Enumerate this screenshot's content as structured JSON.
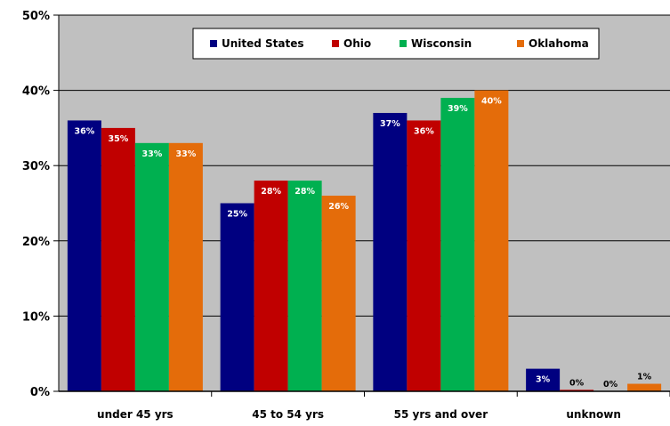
{
  "chart_data": {
    "type": "bar",
    "categories": [
      "under 45 yrs",
      "45 to 54 yrs",
      "55  yrs and over",
      "unknown"
    ],
    "series": [
      {
        "name": "United States",
        "values": [
          36,
          25,
          37,
          3
        ],
        "labels": [
          "36%",
          "25%",
          "37%",
          "3%"
        ],
        "color": "#000080"
      },
      {
        "name": "Ohio",
        "values": [
          35,
          28,
          36,
          0.2
        ],
        "labels": [
          "35%",
          "28%",
          "36%",
          "0%"
        ],
        "color": "#C00000"
      },
      {
        "name": "Wisconsin",
        "values": [
          33,
          28,
          39,
          0
        ],
        "labels": [
          "33%",
          "28%",
          "39%",
          "0%"
        ],
        "color": "#00B050"
      },
      {
        "name": "Oklahoma",
        "values": [
          33,
          26,
          40,
          1
        ],
        "labels": [
          "33%",
          "26%",
          "40%",
          "1%"
        ],
        "color": "#E46C0A"
      }
    ],
    "ylim": [
      0,
      50
    ],
    "yticks": [
      0,
      10,
      20,
      30,
      40,
      50
    ],
    "ytick_labels": [
      "0%",
      "10%",
      "20%",
      "30%",
      "40%",
      "50%"
    ],
    "grid": true,
    "legend_position": "top-center",
    "title": "",
    "xlabel": "",
    "ylabel": "",
    "plot_background": "#C0C0C0"
  }
}
